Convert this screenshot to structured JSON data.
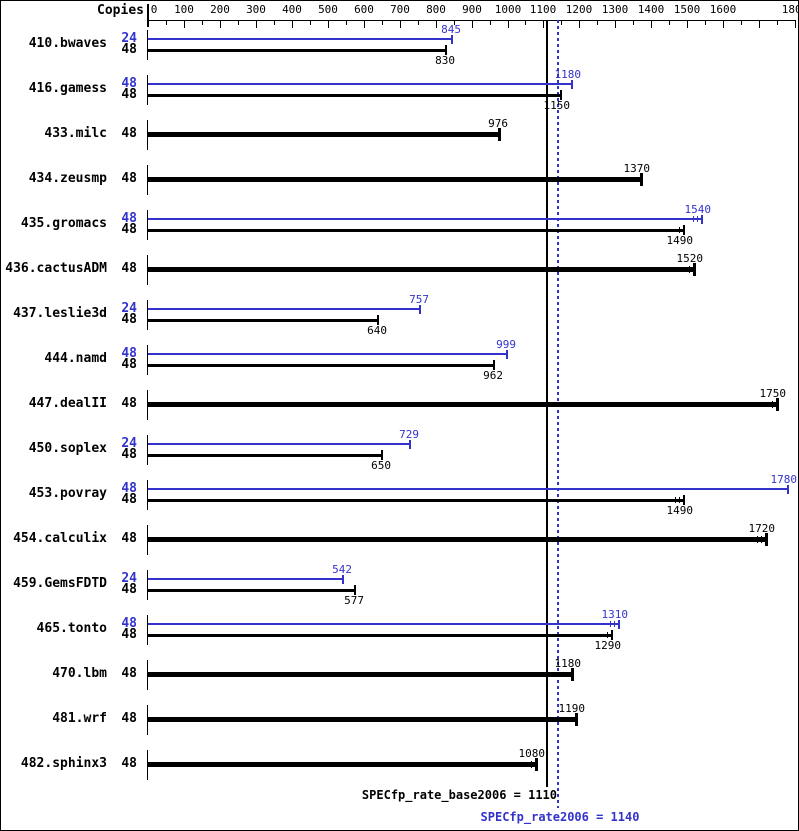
{
  "header": {
    "copies_label": "Copies"
  },
  "colors": {
    "peak": "#3333cc",
    "base": "#000000"
  },
  "footer": {
    "base_label": "SPECfp_rate_base2006 = 1110",
    "peak_label": "SPECfp_rate2006 = 1140"
  },
  "chart_data": {
    "type": "bar",
    "orientation": "horizontal",
    "title": "",
    "xlabel": "",
    "ylabel": "Copies",
    "axis": {
      "min": 0,
      "max": 1800,
      "major_tick": 100,
      "minor_tick": 50,
      "unlabeled_ticks": [
        1700
      ],
      "position": "top"
    },
    "legend": {
      "peak_series": "SPECfp_rate2006",
      "base_series": "SPECfp_rate_base2006"
    },
    "reference_lines": [
      {
        "name": "SPECfp_rate_base2006",
        "value": 1110,
        "style": "solid",
        "color": "#000000"
      },
      {
        "name": "SPECfp_rate2006",
        "value": 1140,
        "style": "dotted",
        "color": "#3333cc"
      }
    ],
    "summary": {
      "base": 1110,
      "peak": 1140
    },
    "benchmarks": [
      {
        "name": "410.bwaves",
        "bars": [
          {
            "series": "peak",
            "copies": "24",
            "value": 845,
            "label_pos": "above",
            "bold": false,
            "marks": 0
          },
          {
            "series": "base",
            "copies": "48",
            "value": 830,
            "label_pos": "below",
            "bold": false,
            "marks": 0
          }
        ]
      },
      {
        "name": "416.gamess",
        "bars": [
          {
            "series": "peak",
            "copies": "48",
            "value": 1180,
            "label_pos": "above",
            "bold": false,
            "marks": 0
          },
          {
            "series": "base",
            "copies": "48",
            "value": 1150,
            "label_pos": "below",
            "bold": false,
            "marks": 0
          }
        ]
      },
      {
        "name": "433.milc",
        "bars": [
          {
            "series": "base",
            "copies": "48",
            "value": 976,
            "label_pos": "above",
            "bold": true,
            "marks": 0
          }
        ]
      },
      {
        "name": "434.zeusmp",
        "bars": [
          {
            "series": "base",
            "copies": "48",
            "value": 1370,
            "label_pos": "above",
            "bold": true,
            "marks": 0
          }
        ]
      },
      {
        "name": "435.gromacs",
        "bars": [
          {
            "series": "peak",
            "copies": "48",
            "value": 1540,
            "label_pos": "above",
            "bold": false,
            "marks": 2
          },
          {
            "series": "base",
            "copies": "48",
            "value": 1490,
            "label_pos": "below",
            "bold": false,
            "marks": 1
          }
        ]
      },
      {
        "name": "436.cactusADM",
        "bars": [
          {
            "series": "base",
            "copies": "48",
            "value": 1520,
            "label_pos": "above",
            "bold": true,
            "marks": 1
          }
        ]
      },
      {
        "name": "437.leslie3d",
        "bars": [
          {
            "series": "peak",
            "copies": "24",
            "value": 757,
            "label_pos": "above",
            "bold": false,
            "marks": 0
          },
          {
            "series": "base",
            "copies": "48",
            "value": 640,
            "label_pos": "below",
            "bold": false,
            "marks": 0
          }
        ]
      },
      {
        "name": "444.namd",
        "bars": [
          {
            "series": "peak",
            "copies": "48",
            "value": 999,
            "label_pos": "above",
            "bold": false,
            "marks": 0
          },
          {
            "series": "base",
            "copies": "48",
            "value": 962,
            "label_pos": "below",
            "bold": false,
            "marks": 0
          }
        ]
      },
      {
        "name": "447.dealII",
        "bars": [
          {
            "series": "base",
            "copies": "48",
            "value": 1750,
            "label_pos": "above",
            "bold": true,
            "marks": 1
          }
        ]
      },
      {
        "name": "450.soplex",
        "bars": [
          {
            "series": "peak",
            "copies": "24",
            "value": 729,
            "label_pos": "above",
            "bold": false,
            "marks": 0
          },
          {
            "series": "base",
            "copies": "48",
            "value": 650,
            "label_pos": "below",
            "bold": false,
            "marks": 0
          }
        ]
      },
      {
        "name": "453.povray",
        "bars": [
          {
            "series": "peak",
            "copies": "48",
            "value": 1780,
            "label_pos": "above",
            "bold": false,
            "marks": 0
          },
          {
            "series": "base",
            "copies": "48",
            "value": 1490,
            "label_pos": "below",
            "bold": false,
            "marks": 2
          }
        ]
      },
      {
        "name": "454.calculix",
        "bars": [
          {
            "series": "base",
            "copies": "48",
            "value": 1720,
            "label_pos": "above",
            "bold": true,
            "marks": 2
          }
        ]
      },
      {
        "name": "459.GemsFDTD",
        "bars": [
          {
            "series": "peak",
            "copies": "24",
            "value": 542,
            "label_pos": "above",
            "bold": false,
            "marks": 0
          },
          {
            "series": "base",
            "copies": "48",
            "value": 577,
            "label_pos": "below",
            "bold": false,
            "marks": 0
          }
        ]
      },
      {
        "name": "465.tonto",
        "bars": [
          {
            "series": "peak",
            "copies": "48",
            "value": 1310,
            "label_pos": "above",
            "bold": false,
            "marks": 2
          },
          {
            "series": "base",
            "copies": "48",
            "value": 1290,
            "label_pos": "below",
            "bold": false,
            "marks": 1
          }
        ]
      },
      {
        "name": "470.lbm",
        "bars": [
          {
            "series": "base",
            "copies": "48",
            "value": 1180,
            "label_pos": "above",
            "bold": true,
            "marks": 0
          }
        ]
      },
      {
        "name": "481.wrf",
        "bars": [
          {
            "series": "base",
            "copies": "48",
            "value": 1190,
            "label_pos": "above",
            "bold": true,
            "marks": 0
          }
        ]
      },
      {
        "name": "482.sphinx3",
        "bars": [
          {
            "series": "base",
            "copies": "48",
            "value": 1080,
            "label_pos": "above",
            "bold": true,
            "marks": 1
          }
        ]
      }
    ]
  }
}
